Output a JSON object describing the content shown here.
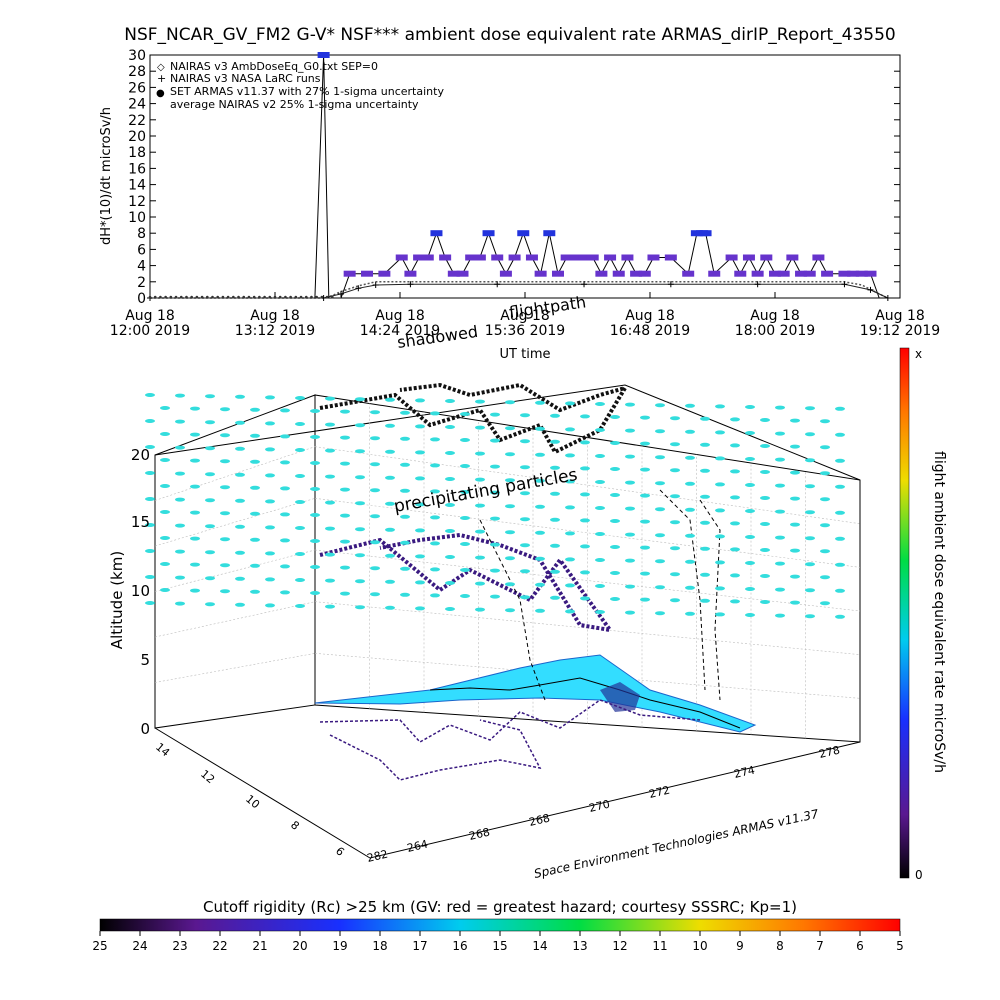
{
  "title": "NSF_NCAR_GV_FM2 G-V* NSF*** ambient dose equivalent rate ARMAS_dirIP_Report_43550",
  "colors": {
    "armas": "#2233dd",
    "nairas_v2": "#6633cc",
    "ocean": "#33ddff",
    "rigidity_dots": "#33dddd"
  },
  "chart_data": [
    {
      "type": "line",
      "title": "NSF_NCAR_GV_FM2 G-V* NSF*** ambient dose equivalent rate ARMAS_dirIP_Report_43550",
      "xlabel": "UT time",
      "ylabel": "dH*(10)/dt microSv/h",
      "ylim": [
        0,
        30
      ],
      "yticks": [
        0,
        2,
        4,
        6,
        8,
        10,
        12,
        14,
        16,
        18,
        20,
        22,
        24,
        26,
        28,
        30
      ],
      "xlim_minutes_after_1200": [
        0,
        432
      ],
      "xticks": [
        {
          "day": "Aug 18",
          "time": "12:00 2019",
          "min": 0
        },
        {
          "day": "Aug 18",
          "time": "13:12 2019",
          "min": 72
        },
        {
          "day": "Aug 18",
          "time": "14:24 2019",
          "min": 144
        },
        {
          "day": "Aug 18",
          "time": "15:36 2019",
          "min": 216
        },
        {
          "day": "Aug 18",
          "time": "16:48 2019",
          "min": 288
        },
        {
          "day": "Aug 18",
          "time": "18:00 2019",
          "min": 360
        },
        {
          "day": "Aug 18",
          "time": "19:12 2019",
          "min": 432
        }
      ],
      "legend_position": "top-left",
      "legend": [
        {
          "marker": "◇",
          "label": "NAIRAS v3 AmbDoseEq_G0.txt SEP=0"
        },
        {
          "marker": "+",
          "label": "NAIRAS v3 NASA LaRC runs"
        },
        {
          "marker": "●",
          "label": "SET ARMAS v11.37 with 27% 1-sigma uncertainty"
        },
        {
          "marker": "",
          "label": "average NAIRAS v2 25% 1-sigma uncertainty"
        }
      ],
      "annotations": [
        "shadowed",
        "flightpath"
      ],
      "series": [
        {
          "name": "SET ARMAS v11.37 with 27% 1-sigma uncertainty",
          "x_min": [
            0,
            95,
            100,
            103,
            105,
            110,
            115,
            125,
            135,
            145,
            150,
            155,
            160,
            165,
            170,
            175,
            180,
            185,
            190,
            195,
            200,
            205,
            210,
            215,
            220,
            225,
            230,
            235,
            240,
            245,
            250,
            255,
            260,
            265,
            270,
            275,
            280,
            285,
            290,
            300,
            310,
            315,
            318,
            320,
            325,
            335,
            340,
            345,
            350,
            355,
            360,
            365,
            370,
            375,
            380,
            385,
            390,
            400,
            405,
            410,
            415,
            420
          ],
          "y": [
            0,
            0,
            30,
            0,
            0,
            0,
            3,
            3,
            3,
            5,
            3,
            5,
            5,
            8,
            5,
            3,
            3,
            5,
            5,
            8,
            5,
            3,
            5,
            8,
            5,
            3,
            8,
            3,
            5,
            5,
            5,
            5,
            3,
            5,
            3,
            5,
            3,
            3,
            5,
            5,
            3,
            8,
            8,
            8,
            3,
            5,
            3,
            5,
            3,
            5,
            3,
            3,
            5,
            3,
            3,
            5,
            3,
            3,
            3,
            3,
            3,
            0
          ]
        },
        {
          "name": "average NAIRAS v2 25% 1-sigma uncertainty",
          "x_min": [
            0,
            100,
            105,
            110,
            120,
            130,
            150,
            200,
            250,
            300,
            350,
            400,
            410,
            420,
            425
          ],
          "y": [
            0,
            0,
            0.3,
            0.8,
            1.5,
            2,
            2,
            2,
            2,
            2,
            2,
            2,
            1.6,
            0.5,
            0
          ]
        },
        {
          "name": "NAIRAS v3 NASA LaRC runs",
          "x_min": [
            0,
            100,
            110,
            120,
            130,
            150,
            200,
            250,
            300,
            350,
            400,
            415,
            425
          ],
          "y": [
            0,
            0,
            0.5,
            1.2,
            1.6,
            1.7,
            1.7,
            1.7,
            1.7,
            1.7,
            1.7,
            1.0,
            0
          ]
        }
      ]
    },
    {
      "type": "scatter",
      "subtype": "3d-flight-track",
      "zlabel": "Altitude (km)",
      "zlim": [
        0,
        20
      ],
      "zticks": [
        0,
        5,
        10,
        15,
        20
      ],
      "y_ticks_left": [
        "14",
        "12",
        "10",
        "8",
        "6"
      ],
      "x_ticks_front": [
        "282",
        "264",
        "268",
        "268",
        "270",
        "272",
        "274",
        "278"
      ],
      "annotations": [
        "precipitating particles"
      ],
      "footer": "Space Environment Technologies ARMAS v11.37",
      "colorbar": {
        "label": "flight ambient dose equivalent rate microSv/h",
        "max_label": "x",
        "min_label": "0"
      }
    },
    {
      "type": "heatmap",
      "subtype": "colorbar",
      "title": "Cutoff rigidity (Rc) >25 km (GV: red = greatest hazard; courtesy SSSRC; Kp=1)",
      "ticks": [
        "25",
        "24",
        "23",
        "22",
        "21",
        "20",
        "19",
        "18",
        "17",
        "16",
        "15",
        "14",
        "13",
        "12",
        "11",
        "10",
        "9",
        "8",
        "7",
        "6",
        "5"
      ],
      "range": [
        25,
        5
      ]
    }
  ]
}
